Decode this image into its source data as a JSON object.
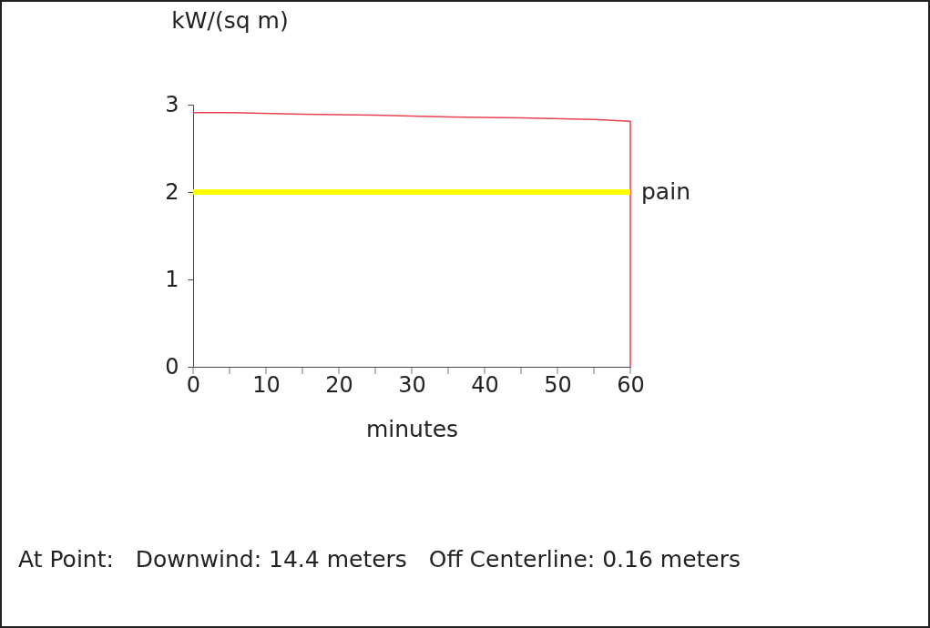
{
  "chart_data": {
    "type": "line",
    "xlabel": "minutes",
    "ylabel": "kW/(sq m)",
    "series": [
      {
        "color": "#e8404f",
        "x": [
          0,
          5,
          15,
          25,
          35,
          45,
          55,
          60,
          60
        ],
        "values": [
          2.91,
          2.91,
          2.89,
          2.88,
          2.86,
          2.85,
          2.83,
          2.81,
          0
        ]
      }
    ],
    "xlim": [
      0,
      60
    ],
    "ylim": [
      0,
      3
    ],
    "xticks": [
      0,
      {
        "value": 5,
        "label": null
      },
      10,
      {
        "value": 15,
        "label": null
      },
      20,
      {
        "value": 25,
        "label": null
      },
      30,
      {
        "value": 35,
        "label": null
      },
      40,
      {
        "value": 45,
        "label": null
      },
      50,
      {
        "value": 55,
        "label": null
      },
      60
    ],
    "yticks": [
      0,
      1,
      2,
      3
    ],
    "ref_lines": [
      {
        "axis": "y",
        "value": 2,
        "label": "pain",
        "color": "#ffff00"
      }
    ],
    "annotations": [
      "At Point:   Downwind: 14.4 meters   Off Centerline: 0.16 meters"
    ]
  }
}
